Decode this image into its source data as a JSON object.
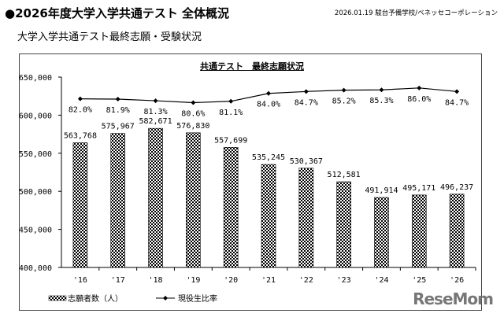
{
  "header": {
    "title": "●2026年度大学入学共通テスト 全体概況",
    "source": "2026.01.19 駿台予備学校/ベネッセコーポレーション",
    "subtitle": "大学入学共通テスト最終志願・受験状況"
  },
  "logo": "ReseMom",
  "chart_data": {
    "type": "bar",
    "title": "共通テスト　最終志願状況",
    "categories": [
      "'16",
      "'17",
      "'18",
      "'19",
      "'20",
      "'21",
      "'22",
      "'23",
      "'24",
      "'25",
      "'26"
    ],
    "ylim": [
      400000,
      650000
    ],
    "yticks": [
      "400,000",
      "450,000",
      "500,000",
      "550,000",
      "600,000",
      "650,000"
    ],
    "y2lim": [
      20,
      90
    ],
    "grid": false,
    "legend_position": "bottom-left",
    "series": [
      {
        "name": "志願者数（人）",
        "type": "bar",
        "pattern": "checkered",
        "values": [
          563768,
          575967,
          582671,
          576830,
          557699,
          535245,
          530367,
          512581,
          491914,
          495171,
          496237
        ],
        "labels": [
          "563,768",
          "575,967",
          "582,671",
          "576,830",
          "557,699",
          "535,245",
          "530,367",
          "512,581",
          "491,914",
          "495,171",
          "496,237"
        ]
      },
      {
        "name": "現役生比率",
        "type": "line",
        "axis": "secondary",
        "values": [
          82.0,
          81.9,
          81.3,
          80.6,
          81.1,
          84.0,
          84.7,
          85.2,
          85.3,
          86.0,
          84.7
        ],
        "labels": [
          "82.0%",
          "81.9%",
          "81.3%",
          "80.6%",
          "81.1%",
          "84.0%",
          "84.7%",
          "85.2%",
          "85.3%",
          "86.0%",
          "84.7%"
        ]
      }
    ]
  }
}
